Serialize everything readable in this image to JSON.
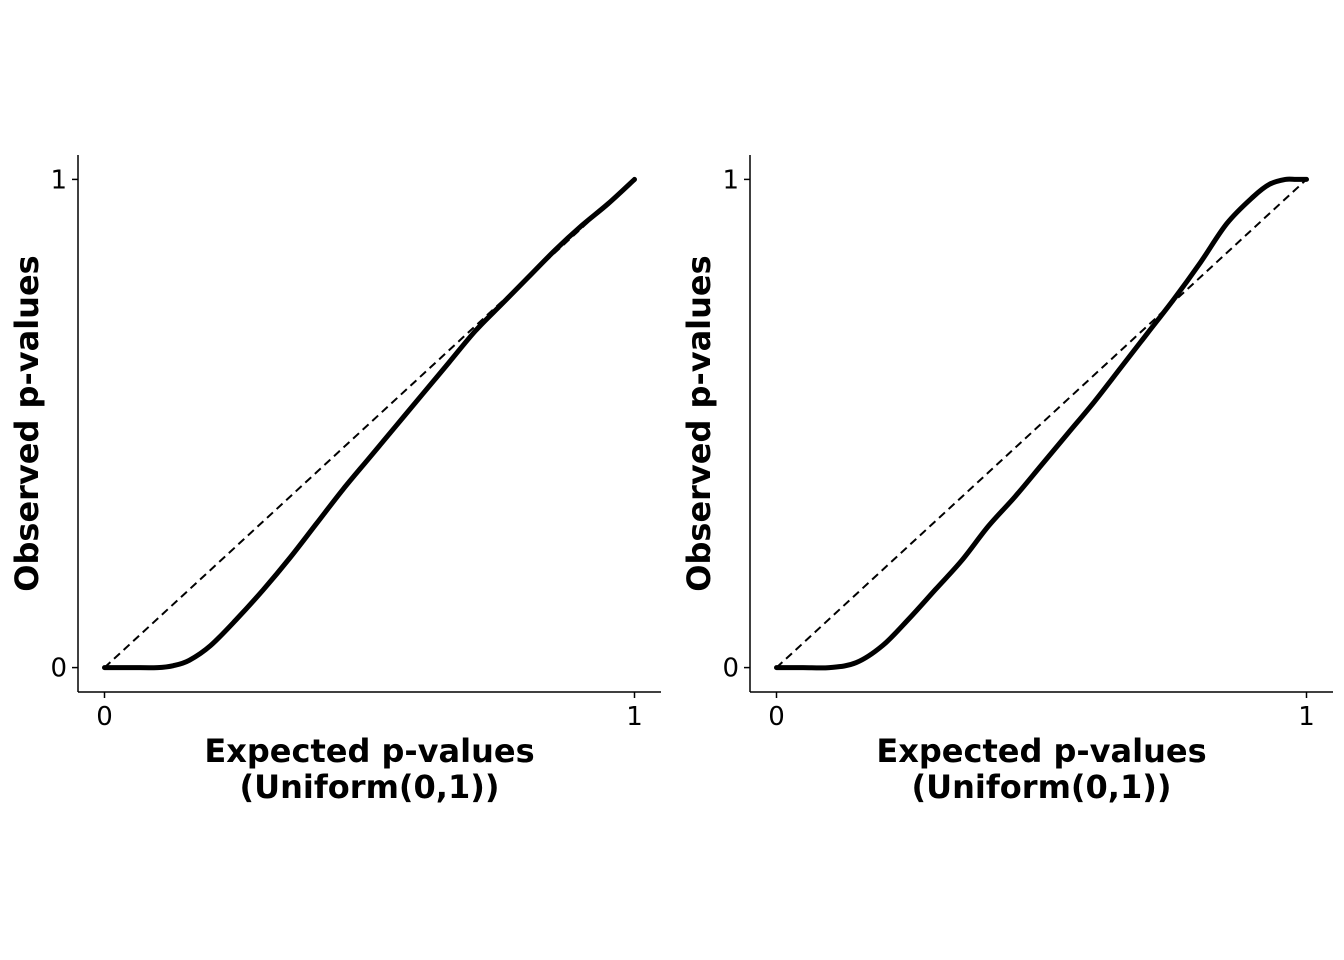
{
  "chart_data": [
    {
      "type": "line",
      "xlabel_lines": [
        "Expected p-values",
        "(Uniform(0,1))"
      ],
      "ylabel": "Observed p-values",
      "xlim": [
        -0.05,
        1.05
      ],
      "ylim": [
        -0.05,
        1.05
      ],
      "xticks": [
        0,
        1
      ],
      "xtick_labels": [
        "0",
        "1"
      ],
      "yticks": [
        0,
        1
      ],
      "ytick_labels": [
        "0",
        "1"
      ],
      "grid": false,
      "reference_line": {
        "x": [
          0,
          1
        ],
        "y": [
          0,
          1
        ],
        "style": "dashed"
      },
      "series": [
        {
          "x": [
            0,
            0.05,
            0.1,
            0.13,
            0.16,
            0.2,
            0.25,
            0.3,
            0.35,
            0.4,
            0.45,
            0.5,
            0.55,
            0.6,
            0.65,
            0.7,
            0.75,
            0.8,
            0.85,
            0.9,
            0.95,
            1.0
          ],
          "y": [
            0,
            0,
            0,
            0.004,
            0.015,
            0.045,
            0.1,
            0.16,
            0.225,
            0.295,
            0.365,
            0.43,
            0.495,
            0.56,
            0.625,
            0.69,
            0.745,
            0.8,
            0.855,
            0.905,
            0.95,
            1.0
          ]
        }
      ]
    },
    {
      "type": "line",
      "xlabel_lines": [
        "Expected p-values",
        "(Uniform(0,1))"
      ],
      "ylabel": "Observed p-values",
      "xlim": [
        -0.05,
        1.05
      ],
      "ylim": [
        -0.05,
        1.05
      ],
      "xticks": [
        0,
        1
      ],
      "xtick_labels": [
        "0",
        "1"
      ],
      "yticks": [
        0,
        1
      ],
      "ytick_labels": [
        "0",
        "1"
      ],
      "grid": false,
      "reference_line": {
        "x": [
          0,
          1
        ],
        "y": [
          0,
          1
        ],
        "style": "dashed"
      },
      "series": [
        {
          "x": [
            0,
            0.05,
            0.1,
            0.15,
            0.2,
            0.25,
            0.3,
            0.35,
            0.4,
            0.45,
            0.5,
            0.55,
            0.6,
            0.65,
            0.7,
            0.75,
            0.8,
            0.85,
            0.9,
            0.93,
            0.96,
            0.98,
            1.0
          ],
          "y": [
            0,
            0,
            0,
            0.01,
            0.045,
            0.1,
            0.16,
            0.22,
            0.29,
            0.35,
            0.415,
            0.48,
            0.545,
            0.615,
            0.685,
            0.755,
            0.83,
            0.91,
            0.965,
            0.99,
            1.0,
            1.0,
            1.0
          ]
        }
      ]
    }
  ]
}
